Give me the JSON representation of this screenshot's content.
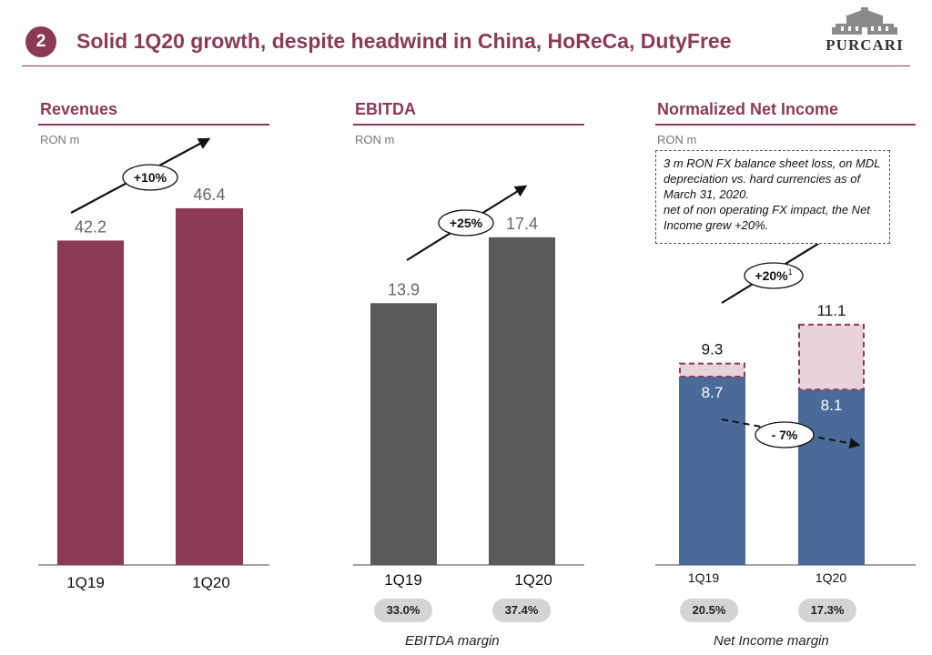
{
  "header": {
    "slide_number": "2",
    "title": "Solid 1Q20 growth, despite headwind in China, HoReCa, DutyFree",
    "logo_text": "PURCARI",
    "accent_color": "#8B3A55"
  },
  "panels": [
    {
      "title": "Revenues",
      "unit": "RON m"
    },
    {
      "title": "EBITDA",
      "unit": "RON m"
    },
    {
      "title": "Normalized Net Income",
      "unit": "RON m"
    }
  ],
  "note": {
    "line1": "3 m RON FX balance sheet loss, on MDL depreciation vs. hard currencies as of March 31, 2020.",
    "line2": "net of non operating FX impact, the Net Income grew +20%."
  },
  "margins": {
    "ebitda": {
      "label": "EBITDA margin",
      "values": [
        "33.0%",
        "37.4%"
      ]
    },
    "net_income": {
      "label": "Net Income margin",
      "values": [
        "20.5%",
        "17.3%"
      ]
    }
  },
  "chart_data": [
    {
      "type": "bar",
      "title": "Revenues",
      "ylabel": "RON m",
      "categories": [
        "1Q19",
        "1Q20"
      ],
      "values": [
        42.2,
        46.4
      ],
      "value_labels": [
        "42.2",
        "46.4"
      ],
      "growth_label": "+10%",
      "color": "#8B3A55"
    },
    {
      "type": "bar",
      "title": "EBITDA",
      "ylabel": "RON m",
      "categories": [
        "1Q19",
        "1Q20"
      ],
      "values": [
        13.9,
        17.4
      ],
      "value_labels": [
        "13.9",
        "17.4"
      ],
      "growth_label": "+25%",
      "color": "#5a5a5a"
    },
    {
      "type": "bar",
      "title": "Normalized Net Income",
      "ylabel": "RON m",
      "categories": [
        "1Q19",
        "1Q20"
      ],
      "series": [
        {
          "values": [
            8.7,
            8.1
          ],
          "color": "#4A6A9A"
        },
        {
          "values": [
            0.6,
            3.0
          ],
          "color": "#E9D3DB",
          "style": "dashed"
        }
      ],
      "base_labels": [
        "8.7",
        "8.1"
      ],
      "total_labels": [
        "9.3",
        "11.1"
      ],
      "growth_label": "+20%",
      "growth_superscript": "1",
      "decline_label": "- 7%"
    }
  ]
}
